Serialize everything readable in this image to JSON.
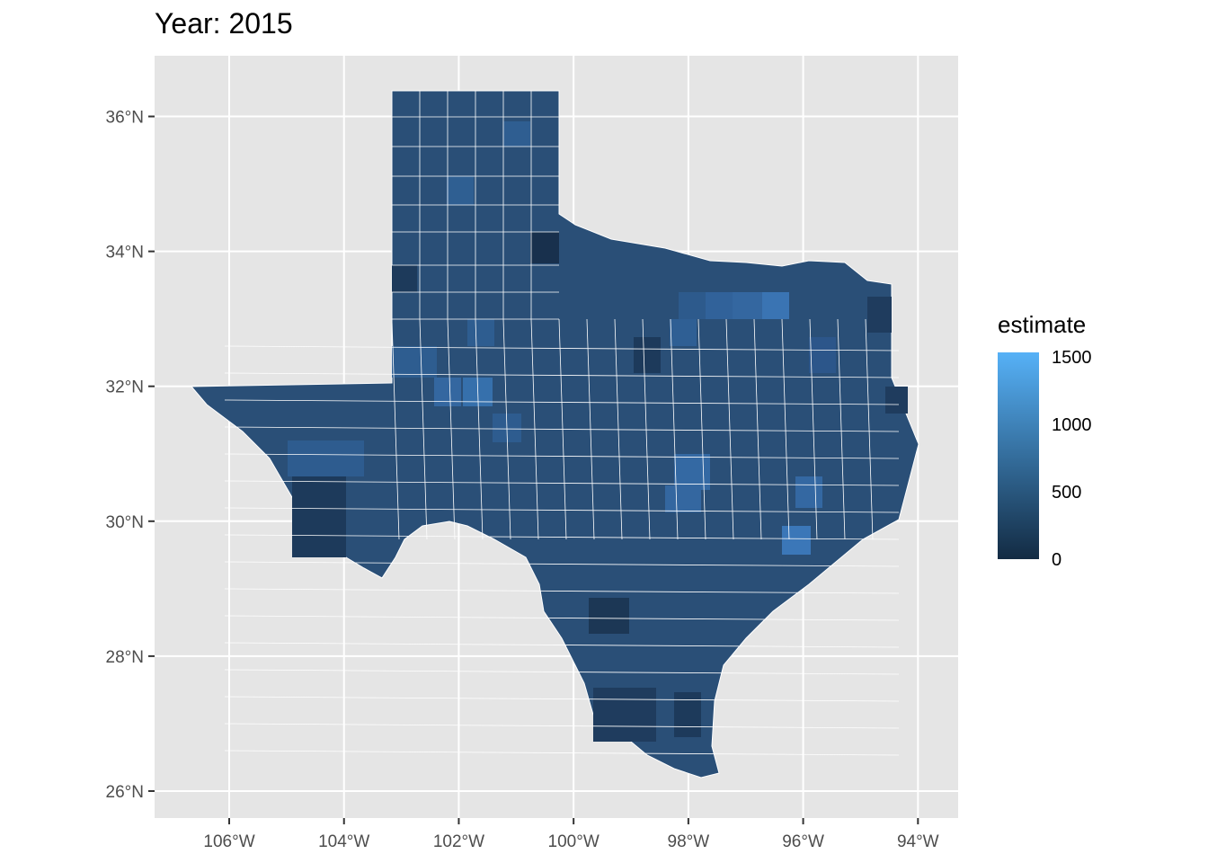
{
  "title": "Year: 2015",
  "legend": {
    "title": "estimate",
    "labels": [
      "1500",
      "1000",
      "500",
      "0"
    ],
    "low_color": "#132b43",
    "high_color": "#56b1f7"
  },
  "axes": {
    "x_ticks": [
      "106°W",
      "104°W",
      "102°W",
      "100°W",
      "98°W",
      "96°W",
      "94°W"
    ],
    "y_ticks": [
      "36°N",
      "34°N",
      "32°N",
      "30°N",
      "28°N",
      "26°N"
    ]
  },
  "colors": {
    "panel": "#e5e5e5",
    "grid": "#ffffff",
    "county_border": "#ffffff"
  },
  "chart_data": {
    "type": "choropleth",
    "region": "Texas counties",
    "variable": "estimate",
    "scale": {
      "min": 0,
      "max": 1500
    },
    "x_range": [
      -107.3,
      -93.3
    ],
    "y_range": [
      25.6,
      36.9
    ],
    "x_ticks": [
      -106,
      -104,
      -102,
      -100,
      -98,
      -96,
      -94
    ],
    "y_ticks": [
      36,
      34,
      32,
      30,
      28,
      26
    ]
  }
}
